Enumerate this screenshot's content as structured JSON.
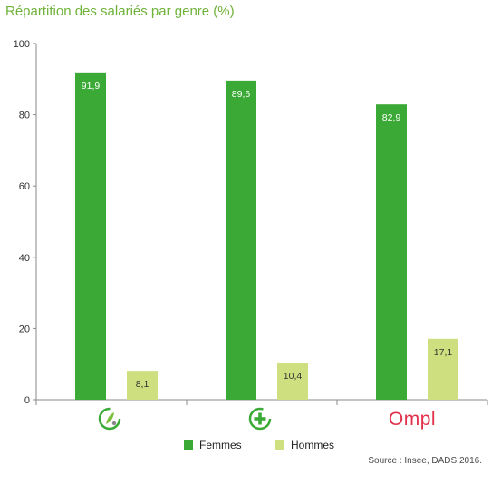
{
  "chart_data": {
    "type": "bar",
    "title": "Répartition des salariés par genre (%)",
    "categories": [
      "category-1-logo",
      "category-2-logo",
      "Ompl"
    ],
    "series": [
      {
        "name": "Femmes",
        "values": [
          91.9,
          89.6,
          82.9
        ],
        "labels": [
          "91,9",
          "89,6",
          "82,9"
        ]
      },
      {
        "name": "Hommes",
        "values": [
          8.1,
          10.4,
          17.1
        ],
        "labels": [
          "8,1",
          "10,4",
          "17,1"
        ]
      }
    ],
    "yticks": [
      "0",
      "20",
      "40",
      "60",
      "80",
      "100"
    ],
    "ylim": [
      0,
      100
    ],
    "grid": false,
    "legend_position": "bottom",
    "source": "Source : Insee, DADS 2016."
  },
  "colors": {
    "femmes": "#3aa935",
    "hommes": "#cddf7e",
    "title": "#6fb23a",
    "ompl": "#e2304a"
  },
  "icons": [
    "leaf-circle-icon",
    "plus-circle-icon",
    "ompl-logo"
  ]
}
